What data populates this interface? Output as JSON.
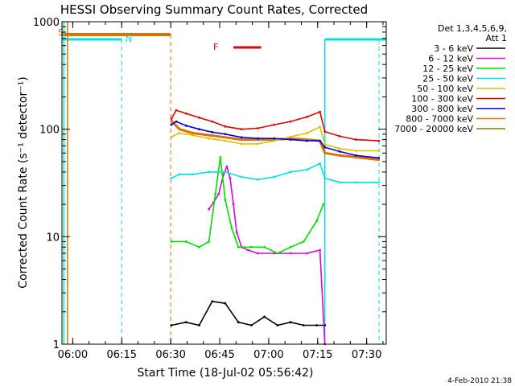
{
  "chart_data": {
    "type": "line",
    "title": "HESSI Observing Summary Count Rates, Corrected",
    "xlabel": "Start Time (18-Jul-02 05:56:42)",
    "ylabel": "Corrected Count Rate (s⁻¹ detector⁻¹)",
    "ylog": true,
    "ylim": [
      1,
      1000
    ],
    "xlim_minutes": [
      0,
      99.3
    ],
    "x_tick_labels": [
      "06:00",
      "06:15",
      "06:30",
      "06:45",
      "07:00",
      "07:15",
      "07:30"
    ],
    "x_ticks_minutes": [
      3.3,
      18.3,
      33.3,
      48.3,
      63.3,
      78.3,
      93.3
    ],
    "y_tick_labels": [
      "1",
      "10",
      "100",
      "1000"
    ],
    "y_ticks": [
      1,
      10,
      100,
      1000
    ],
    "footer": "4-Feb-2010 21:38",
    "legend_header": [
      "Det 1,3,4,5,6,9,",
      "Att 1"
    ],
    "series": [
      {
        "name": "3 - 6 keV",
        "color": "#000000",
        "x": [
          33.5,
          38,
          42,
          46,
          50,
          54,
          58,
          62,
          66,
          70,
          74,
          78,
          80.5
        ],
        "values": [
          1.5,
          1.6,
          1.5,
          2.5,
          2.4,
          1.6,
          1.5,
          1.8,
          1.5,
          1.6,
          1.5,
          1.5,
          1.5
        ]
      },
      {
        "name": "6 - 12 keV",
        "color": "#e000e0",
        "x": [
          45,
          46.5,
          48,
          49.5,
          50.5,
          51.5,
          52.5,
          53.5,
          55,
          57,
          60,
          65,
          70,
          75,
          79,
          80.5
        ],
        "values": [
          18,
          21,
          25,
          38,
          45,
          35,
          20,
          11,
          8,
          7.5,
          7,
          7,
          7,
          7,
          7.5,
          1.0
        ]
      },
      {
        "name": "12 - 25 keV",
        "color": "#00e000",
        "x": [
          33.5,
          38,
          42,
          45,
          47,
          48.5,
          50,
          52,
          54,
          58,
          62,
          66,
          70,
          74,
          78,
          80
        ],
        "values": [
          9,
          9,
          8,
          9,
          25,
          55,
          22,
          12,
          8,
          8,
          8,
          7,
          8,
          9,
          14,
          20
        ]
      },
      {
        "name": "25 - 50 keV",
        "color": "#00e0e0",
        "x": [
          33.5,
          36,
          40,
          45,
          50,
          55,
          60,
          65,
          70,
          75,
          79,
          80.5,
          85,
          90,
          97
        ],
        "values": [
          35,
          38,
          38,
          40,
          40,
          36,
          34,
          36,
          40,
          42,
          48,
          35,
          32,
          32,
          32
        ]
      },
      {
        "name": "50 - 100 keV",
        "color": "#d4c400",
        "x": [
          33.5,
          36,
          40,
          45,
          50,
          55,
          60,
          65,
          70,
          75,
          79,
          80.5,
          85,
          90,
          97
        ],
        "values": [
          85,
          92,
          88,
          82,
          78,
          73,
          73,
          78,
          85,
          92,
          105,
          72,
          66,
          63,
          63
        ]
      },
      {
        "name": "100 - 300 keV",
        "color": "#e00000",
        "x": [
          33.5,
          35,
          38,
          42,
          46,
          50,
          55,
          60,
          65,
          70,
          75,
          79,
          80.5,
          85,
          90,
          97
        ],
        "values": [
          125,
          150,
          140,
          128,
          118,
          106,
          100,
          102,
          110,
          118,
          130,
          145,
          95,
          86,
          80,
          78
        ]
      },
      {
        "name": "300 - 800 keV",
        "color": "#0000e0",
        "x": [
          33.5,
          35,
          38,
          42,
          46,
          50,
          55,
          60,
          65,
          70,
          75,
          79,
          80.5,
          85,
          90,
          97
        ],
        "values": [
          110,
          118,
          108,
          100,
          94,
          90,
          84,
          82,
          82,
          80,
          78,
          78,
          68,
          62,
          57,
          54
        ]
      },
      {
        "name": "800 - 7000 keV",
        "color": "#e07000",
        "x": [
          33.5,
          36,
          40,
          45,
          50,
          55,
          60,
          65,
          70,
          75,
          79,
          80.5,
          85,
          90,
          97
        ],
        "values": [
          120,
          100,
          92,
          88,
          84,
          80,
          80,
          80,
          82,
          80,
          78,
          60,
          57,
          55,
          52
        ]
      },
      {
        "name": "7000 - 20000 keV",
        "color": "#808000",
        "x": [
          33.5,
          36,
          40,
          45,
          50,
          55,
          60,
          65,
          70,
          75,
          79,
          80.5,
          85,
          90,
          97
        ],
        "values": [
          7,
          6,
          5.5,
          5.5,
          6,
          7.5,
          7,
          6.5,
          6.5,
          7,
          6.5,
          5,
          4.8,
          4.5,
          4.5
        ]
      }
    ],
    "annotations": [
      {
        "label": "S",
        "color": "#e07000"
      },
      {
        "label": "N",
        "color": "#00e0e0"
      },
      {
        "label": "F",
        "color": "#e00000"
      }
    ]
  }
}
